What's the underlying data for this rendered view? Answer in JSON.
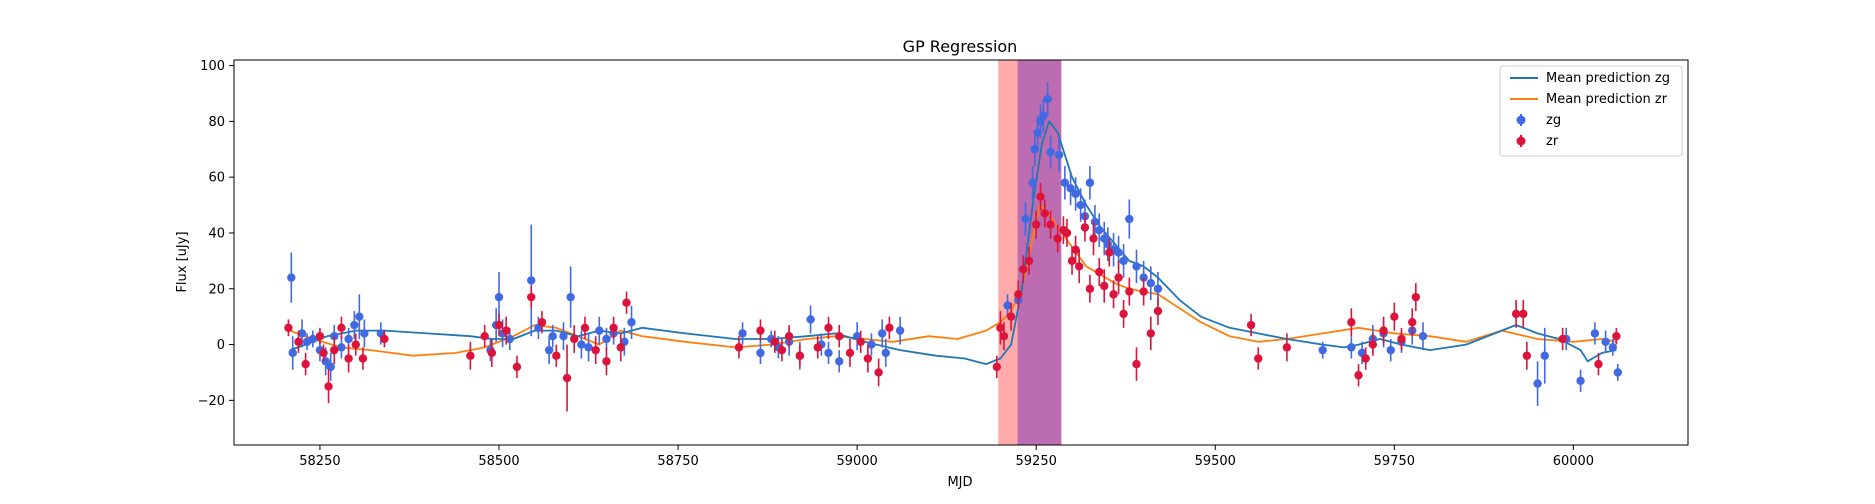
{
  "chart_data": {
    "type": "scatter",
    "title": "GP Regression",
    "xlabel": "MJD",
    "ylabel": "Flux [uJy]",
    "xlim": [
      58130,
      60160
    ],
    "ylim": [
      -36,
      102
    ],
    "x_ticks": [
      58250,
      58500,
      58750,
      59000,
      59250,
      59500,
      59750,
      60000
    ],
    "y_ticks": [
      -20,
      0,
      20,
      40,
      60,
      80,
      100
    ],
    "grid": false,
    "legend_position": "top-right",
    "shaded_regions": [
      {
        "x0": 59197,
        "x1": 59285,
        "color": "#ff9c9c",
        "opacity": 0.85
      },
      {
        "x0": 59224,
        "x1": 59285,
        "color": "#b060b0",
        "opacity": 0.85
      }
    ],
    "series": [
      {
        "name": "Mean prediction zg",
        "kind": "line",
        "color": "#1f77b4",
        "x": [
          58208,
          58230,
          58260,
          58300,
          58340,
          58400,
          58460,
          58490,
          58520,
          58550,
          58580,
          58610,
          58640,
          58670,
          58700,
          58760,
          58830,
          58880,
          58930,
          58970,
          59010,
          59060,
          59110,
          59150,
          59180,
          59200,
          59215,
          59230,
          59245,
          59258,
          59268,
          59280,
          59300,
          59320,
          59340,
          59360,
          59380,
          59400,
          59420,
          59450,
          59480,
          59520,
          59560,
          59600,
          59650,
          59680,
          59700,
          59730,
          59760,
          59800,
          59850,
          59900,
          59920,
          59950,
          59980,
          60010,
          60020,
          60040,
          60060
        ],
        "y": [
          -2,
          0,
          3,
          5,
          5,
          4,
          3,
          2,
          2,
          5,
          5,
          3,
          5,
          4,
          6,
          4,
          2,
          2,
          3,
          4,
          1,
          -2,
          -4,
          -5,
          -7,
          -5,
          0,
          20,
          50,
          72,
          80,
          76,
          60,
          50,
          42,
          36,
          30,
          28,
          24,
          16,
          10,
          6,
          4,
          2,
          0,
          -1,
          0,
          2,
          0,
          -2,
          0,
          5,
          7,
          4,
          2,
          -2,
          -6,
          -3,
          -2
        ]
      },
      {
        "name": "Mean prediction zr",
        "kind": "line",
        "color": "#ff7f0e",
        "x": [
          58208,
          58240,
          58280,
          58320,
          58380,
          58440,
          58480,
          58520,
          58550,
          58580,
          58610,
          58640,
          58670,
          58700,
          58760,
          58830,
          58880,
          58930,
          58970,
          59010,
          59050,
          59100,
          59140,
          59180,
          59200,
          59215,
          59230,
          59245,
          59255,
          59265,
          59280,
          59300,
          59320,
          59340,
          59360,
          59380,
          59400,
          59420,
          59450,
          59480,
          59520,
          59560,
          59600,
          59650,
          59700,
          59750,
          59800,
          59850,
          59900,
          59950,
          60000,
          60040,
          60060
        ],
        "y": [
          5,
          2,
          -1,
          -2,
          -4,
          -3,
          -1,
          3,
          7,
          6,
          3,
          0,
          5,
          3,
          1,
          -1,
          0,
          2,
          3,
          2,
          1,
          3,
          2,
          5,
          8,
          12,
          20,
          38,
          50,
          48,
          42,
          35,
          28,
          25,
          22,
          20,
          19,
          18,
          13,
          8,
          3,
          1,
          2,
          4,
          6,
          4,
          3,
          1,
          5,
          2,
          1,
          2,
          1
        ]
      },
      {
        "name": "zg",
        "kind": "errorbar",
        "color": "#4169e1",
        "x": [
          58210,
          58212,
          58225,
          58232,
          58240,
          58250,
          58258,
          58265,
          58270,
          58280,
          58290,
          58298,
          58305,
          58312,
          58335,
          58488,
          58496,
          58500,
          58505,
          58515,
          58545,
          58555,
          58570,
          58575,
          58590,
          58600,
          58615,
          58625,
          58640,
          58650,
          58660,
          58675,
          58685,
          58840,
          58865,
          58880,
          58890,
          58905,
          58920,
          58935,
          58950,
          58960,
          58975,
          59000,
          59020,
          59035,
          59040,
          59060,
          59210,
          59225,
          59235,
          59245,
          59248,
          59252,
          59256,
          59260,
          59266,
          59270,
          59282,
          59290,
          59298,
          59305,
          59312,
          59318,
          59325,
          59332,
          59338,
          59345,
          59350,
          59358,
          59365,
          59372,
          59380,
          59390,
          59400,
          59410,
          59420,
          59650,
          59690,
          59705,
          59720,
          59735,
          59745,
          59760,
          59775,
          59790,
          59950,
          59960,
          59990,
          60010,
          60030,
          60045,
          60055,
          60062
        ],
        "y": [
          24,
          -3,
          4,
          1,
          2,
          -2,
          -6,
          -8,
          3,
          -1,
          2,
          7,
          10,
          4,
          4,
          -2,
          7,
          17,
          4,
          2,
          23,
          6,
          -2,
          3,
          3,
          17,
          0,
          -1,
          5,
          2,
          4,
          1,
          8,
          4,
          -3,
          2,
          -1,
          1,
          -4,
          9,
          0,
          -3,
          -6,
          3,
          0,
          4,
          -3,
          5,
          14,
          16,
          45,
          58,
          70,
          76,
          80,
          82,
          88,
          69,
          68,
          58,
          56,
          54,
          50,
          46,
          58,
          44,
          41,
          38,
          36,
          34,
          33,
          30,
          45,
          28,
          24,
          22,
          20,
          -2,
          -1,
          -3,
          2,
          4,
          -2,
          1,
          5,
          3,
          -14,
          -4,
          2,
          -13,
          4,
          1,
          -1,
          -10
        ],
        "err": [
          9,
          6,
          5,
          3,
          3,
          4,
          5,
          5,
          4,
          4,
          4,
          5,
          8,
          5,
          4,
          4,
          6,
          9,
          5,
          4,
          20,
          4,
          5,
          4,
          5,
          11,
          5,
          5,
          5,
          4,
          4,
          5,
          6,
          4,
          4,
          3,
          4,
          5,
          5,
          5,
          4,
          4,
          4,
          5,
          4,
          5,
          5,
          5,
          4,
          4,
          6,
          6,
          6,
          6,
          6,
          6,
          6,
          6,
          6,
          6,
          6,
          6,
          6,
          6,
          6,
          6,
          6,
          6,
          6,
          6,
          6,
          6,
          7,
          6,
          6,
          6,
          6,
          3,
          4,
          4,
          5,
          5,
          4,
          4,
          5,
          5,
          8,
          10,
          4,
          4,
          4,
          4,
          3,
          3
        ]
      },
      {
        "name": "zr",
        "kind": "errorbar",
        "color": "#dc143c",
        "x": [
          58206,
          58220,
          58230,
          58250,
          58255,
          58262,
          58270,
          58280,
          58290,
          58300,
          58310,
          58340,
          58460,
          58480,
          58490,
          58500,
          58510,
          58525,
          58545,
          58560,
          58580,
          58595,
          58605,
          58620,
          58635,
          58650,
          58660,
          58670,
          58678,
          58835,
          58865,
          58885,
          58895,
          58905,
          58920,
          58945,
          58960,
          58975,
          58990,
          59005,
          59015,
          59030,
          59045,
          59195,
          59200,
          59205,
          59215,
          59225,
          59232,
          59240,
          59250,
          59256,
          59262,
          59270,
          59280,
          59288,
          59293,
          59300,
          59305,
          59310,
          59318,
          59325,
          59330,
          59338,
          59345,
          59352,
          59358,
          59365,
          59372,
          59380,
          59390,
          59400,
          59410,
          59420,
          59550,
          59560,
          59600,
          59690,
          59700,
          59710,
          59720,
          59735,
          59750,
          59760,
          59775,
          59780,
          59920,
          59930,
          59935,
          59985,
          60035,
          60060
        ],
        "y": [
          6,
          1,
          -7,
          3,
          -3,
          -15,
          -2,
          6,
          -5,
          0,
          -5,
          2,
          -4,
          3,
          -3,
          7,
          5,
          -8,
          17,
          8,
          -4,
          -12,
          2,
          6,
          -2,
          -6,
          6,
          -1,
          15,
          -1,
          5,
          1,
          -2,
          3,
          -4,
          -1,
          6,
          3,
          -3,
          1,
          -5,
          -10,
          6,
          -8,
          6,
          3,
          10,
          18,
          27,
          30,
          43,
          53,
          47,
          43,
          38,
          41,
          40,
          30,
          34,
          28,
          42,
          20,
          38,
          26,
          21,
          33,
          18,
          24,
          11,
          19,
          -7,
          19,
          4,
          12,
          7,
          -5,
          -1,
          8,
          -11,
          -5,
          0,
          5,
          10,
          2,
          8,
          17,
          11,
          11,
          -4,
          2,
          -7,
          3
        ],
        "err": [
          3,
          4,
          4,
          3,
          3,
          6,
          5,
          4,
          5,
          4,
          4,
          3,
          5,
          4,
          5,
          4,
          5,
          4,
          4,
          4,
          4,
          12,
          5,
          4,
          5,
          5,
          4,
          5,
          4,
          4,
          4,
          4,
          4,
          4,
          4,
          4,
          4,
          4,
          5,
          4,
          5,
          5,
          4,
          4,
          6,
          5,
          5,
          5,
          5,
          5,
          5,
          5,
          5,
          5,
          5,
          5,
          5,
          5,
          5,
          6,
          5,
          5,
          6,
          5,
          6,
          5,
          5,
          6,
          5,
          5,
          6,
          5,
          6,
          5,
          4,
          4,
          5,
          5,
          4,
          4,
          4,
          5,
          5,
          4,
          5,
          5,
          5,
          5,
          5,
          4,
          4,
          3
        ]
      }
    ]
  }
}
